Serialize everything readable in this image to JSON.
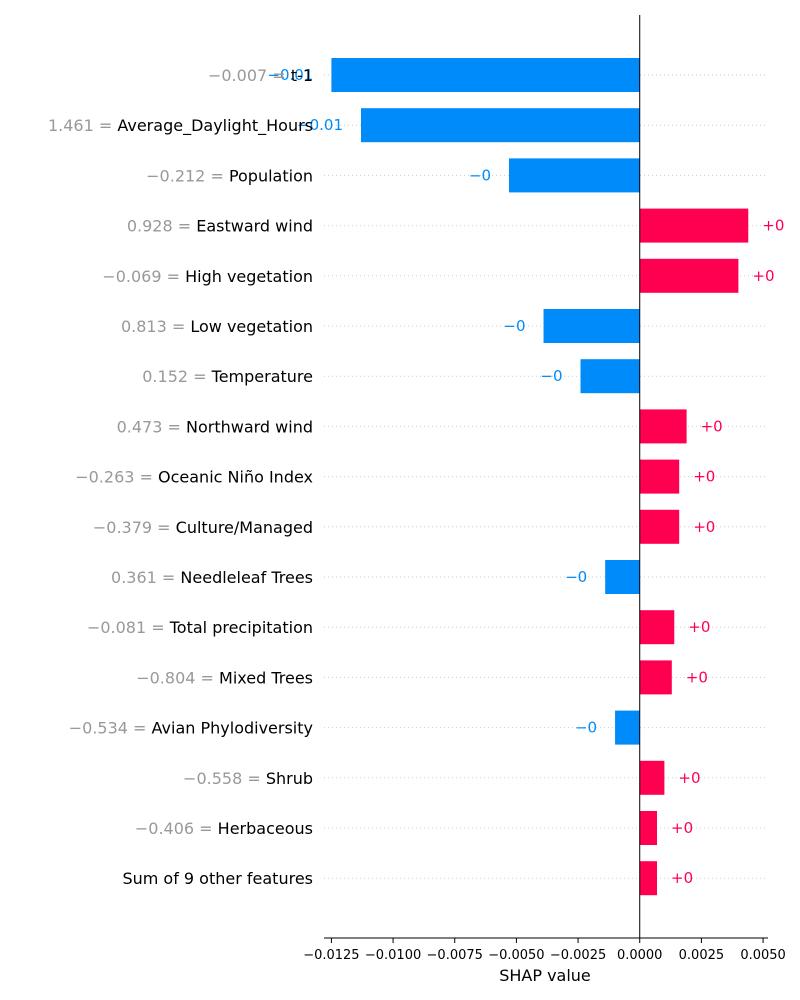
{
  "chart_data": {
    "type": "bar",
    "orientation": "horizontal",
    "xlabel": "SHAP value",
    "xlim": [
      -0.0128,
      0.0052
    ],
    "xticks": [
      -0.0125,
      -0.01,
      -0.0075,
      -0.005,
      -0.0025,
      0.0,
      0.0025,
      0.005
    ],
    "xtick_labels": [
      "−0.0125",
      "−0.0100",
      "−0.0075",
      "−0.0050",
      "−0.0025",
      "0.0000",
      "0.0025",
      "0.0050"
    ],
    "grid": "horizontal dotted",
    "colors": {
      "positive": "#ff0051",
      "negative": "#008bfb",
      "feature_value": "#999999",
      "zero_line": "#000000",
      "grid": "#cccccc"
    },
    "features": [
      {
        "value_text": "−0.007 =",
        "name": "t-1",
        "shap": -0.0125,
        "label": "−0.01"
      },
      {
        "value_text": "1.461 =",
        "name": "Average_Daylight_Hours",
        "shap": -0.0113,
        "label": "−0.01"
      },
      {
        "value_text": "−0.212 =",
        "name": "Population",
        "shap": -0.0053,
        "label": "−0"
      },
      {
        "value_text": "0.928 =",
        "name": "Eastward wind",
        "shap": 0.0044,
        "label": "+0"
      },
      {
        "value_text": "−0.069 =",
        "name": "High vegetation",
        "shap": 0.004,
        "label": "+0"
      },
      {
        "value_text": "0.813 =",
        "name": "Low vegetation",
        "shap": -0.0039,
        "label": "−0"
      },
      {
        "value_text": "0.152 =",
        "name": "Temperature",
        "shap": -0.0024,
        "label": "−0"
      },
      {
        "value_text": "0.473 =",
        "name": "Northward wind",
        "shap": 0.0019,
        "label": "+0"
      },
      {
        "value_text": "−0.263 =",
        "name": "Oceanic Niño Index",
        "shap": 0.0016,
        "label": "+0"
      },
      {
        "value_text": "−0.379 =",
        "name": "Culture/Managed",
        "shap": 0.0016,
        "label": "+0"
      },
      {
        "value_text": "0.361 =",
        "name": "Needleleaf Trees",
        "shap": -0.0014,
        "label": "−0"
      },
      {
        "value_text": "−0.081 =",
        "name": "Total precipitation",
        "shap": 0.0014,
        "label": "+0"
      },
      {
        "value_text": "−0.804 =",
        "name": "Mixed Trees",
        "shap": 0.0013,
        "label": "+0"
      },
      {
        "value_text": "−0.534 =",
        "name": "Avian Phylodiversity",
        "shap": -0.001,
        "label": "−0"
      },
      {
        "value_text": "−0.558 =",
        "name": "Shrub",
        "shap": 0.001,
        "label": "+0"
      },
      {
        "value_text": "−0.406 =",
        "name": "Herbaceous",
        "shap": 0.0007,
        "label": "+0"
      },
      {
        "value_text": "",
        "name": "Sum of 9 other features",
        "shap": 0.0007,
        "label": "+0"
      }
    ]
  }
}
